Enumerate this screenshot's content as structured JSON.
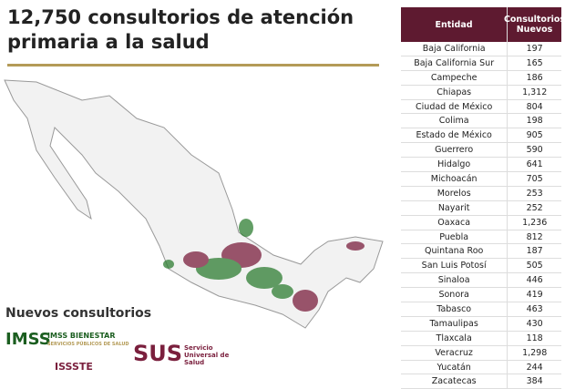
{
  "header": {
    "title": "12,750 consultorios de atención primaria a la salud"
  },
  "table": {
    "columns": [
      "Entidad",
      "Consultorios Nuevos"
    ],
    "rows": [
      [
        "Baja California",
        "197"
      ],
      [
        "Baja California Sur",
        "165"
      ],
      [
        "Campeche",
        "186"
      ],
      [
        "Chiapas",
        "1,312"
      ],
      [
        "Ciudad de México",
        "804"
      ],
      [
        "Colima",
        "198"
      ],
      [
        "Estado de México",
        "905"
      ],
      [
        "Guerrero",
        "590"
      ],
      [
        "Hidalgo",
        "641"
      ],
      [
        "Michoacán",
        "705"
      ],
      [
        "Morelos",
        "253"
      ],
      [
        "Nayarit",
        "252"
      ],
      [
        "Oaxaca",
        "1,236"
      ],
      [
        "Puebla",
        "812"
      ],
      [
        "Quintana Roo",
        "187"
      ],
      [
        "San Luis Potosí",
        "505"
      ],
      [
        "Sinaloa",
        "446"
      ],
      [
        "Sonora",
        "419"
      ],
      [
        "Tabasco",
        "463"
      ],
      [
        "Tamaulipas",
        "430"
      ],
      [
        "Tlaxcala",
        "118"
      ],
      [
        "Veracruz",
        "1,298"
      ],
      [
        "Yucatán",
        "244"
      ],
      [
        "Zacatecas",
        "384"
      ]
    ]
  },
  "legend": {
    "title": "Nuevos consultorios",
    "logos": [
      "IMSS",
      "IMSS BIENESTAR",
      "SERVICIOS PÚBLICOS DE SALUD",
      "ISSSTE",
      "SUS",
      "Servicio Universal de Salud"
    ]
  }
}
